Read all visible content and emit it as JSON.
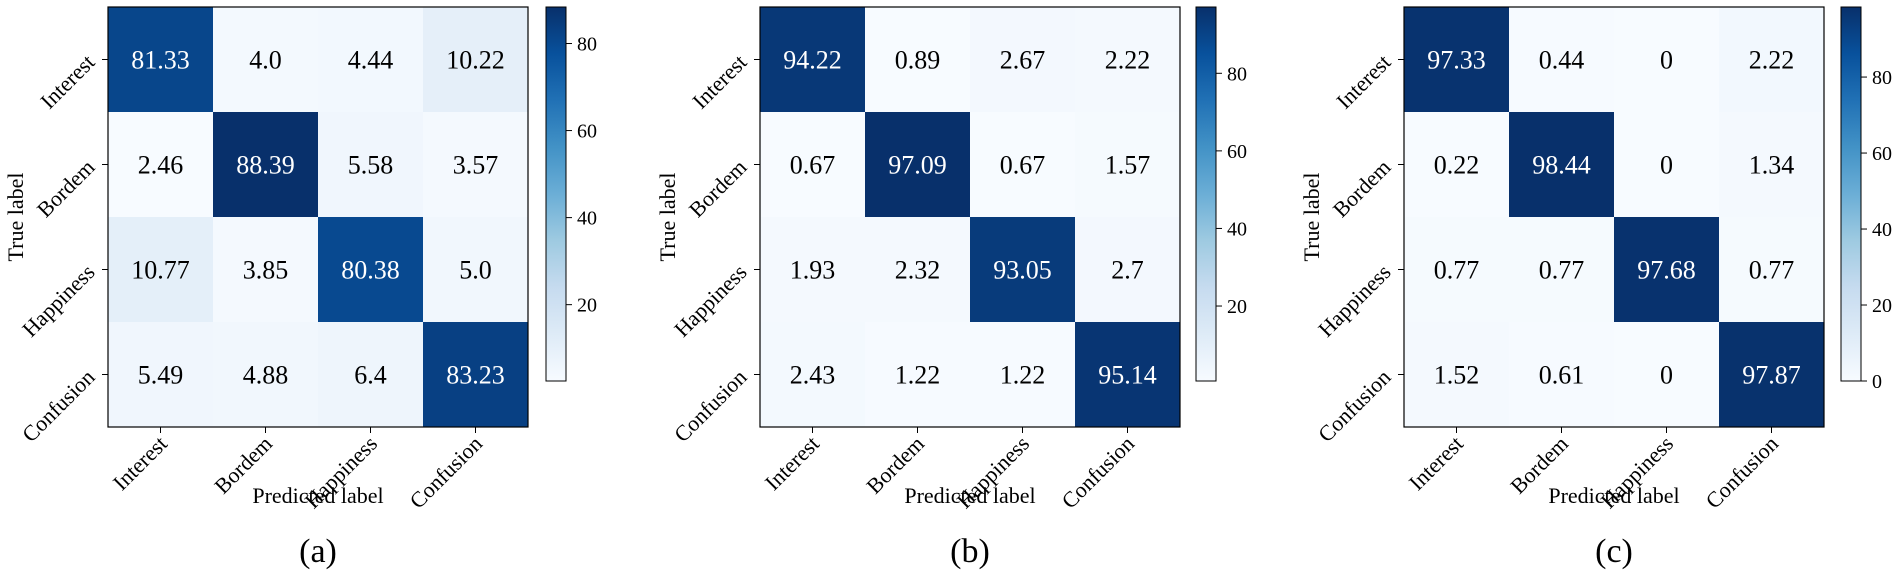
{
  "chart_data": [
    {
      "type": "heatmap",
      "panel_label": "(a)",
      "xlabel": "Predicted label",
      "ylabel": "True label",
      "x_categories": [
        "Interest",
        "Bordem",
        "Happiness",
        "Confusion"
      ],
      "y_categories": [
        "Interest",
        "Bordem",
        "Happiness",
        "Confusion"
      ],
      "values": [
        [
          81.33,
          4.0,
          4.44,
          10.22
        ],
        [
          2.46,
          88.39,
          5.58,
          3.57
        ],
        [
          10.77,
          3.85,
          80.38,
          5.0
        ],
        [
          5.49,
          4.88,
          6.4,
          83.23
        ]
      ],
      "value_labels": [
        [
          "81.33",
          "4.0",
          "4.44",
          "10.22"
        ],
        [
          "2.46",
          "88.39",
          "5.58",
          "3.57"
        ],
        [
          "10.77",
          "3.85",
          "80.38",
          "5.0"
        ],
        [
          "5.49",
          "4.88",
          "6.4",
          "83.23"
        ]
      ],
      "vmin": 2.46,
      "vmax": 88.39,
      "colorbar_ticks": [
        20,
        40,
        60,
        80
      ],
      "colormap": "Blues"
    },
    {
      "type": "heatmap",
      "panel_label": "(b)",
      "xlabel": "Predicted label",
      "ylabel": "True label",
      "x_categories": [
        "Interest",
        "Bordem",
        "Happiness",
        "Confusion"
      ],
      "y_categories": [
        "Interest",
        "Bordem",
        "Happiness",
        "Confusion"
      ],
      "values": [
        [
          94.22,
          0.89,
          2.67,
          2.22
        ],
        [
          0.67,
          97.09,
          0.67,
          1.57
        ],
        [
          1.93,
          2.32,
          93.05,
          2.7
        ],
        [
          2.43,
          1.22,
          1.22,
          95.14
        ]
      ],
      "value_labels": [
        [
          "94.22",
          "0.89",
          "2.67",
          "2.22"
        ],
        [
          "0.67",
          "97.09",
          "0.67",
          "1.57"
        ],
        [
          "1.93",
          "2.32",
          "93.05",
          "2.7"
        ],
        [
          "2.43",
          "1.22",
          "1.22",
          "95.14"
        ]
      ],
      "vmin": 0.67,
      "vmax": 97.09,
      "colorbar_ticks": [
        20,
        40,
        60,
        80
      ],
      "colormap": "Blues"
    },
    {
      "type": "heatmap",
      "panel_label": "(c)",
      "xlabel": "Predicted label",
      "ylabel": "True label",
      "x_categories": [
        "Interest",
        "Bordem",
        "Happiness",
        "Confusion"
      ],
      "y_categories": [
        "Interest",
        "Bordem",
        "Happiness",
        "Confusion"
      ],
      "values": [
        [
          97.33,
          0.44,
          0,
          2.22
        ],
        [
          0.22,
          98.44,
          0,
          1.34
        ],
        [
          0.77,
          0.77,
          97.68,
          0.77
        ],
        [
          1.52,
          0.61,
          0,
          97.87
        ]
      ],
      "value_labels": [
        [
          "97.33",
          "0.44",
          "0",
          "2.22"
        ],
        [
          "0.22",
          "98.44",
          "0",
          "1.34"
        ],
        [
          "0.77",
          "0.77",
          "97.68",
          "0.77"
        ],
        [
          "1.52",
          "0.61",
          "0",
          "97.87"
        ]
      ],
      "vmin": 0,
      "vmax": 98.44,
      "colorbar_ticks": [
        0,
        20,
        40,
        60,
        80
      ],
      "colormap": "Blues"
    }
  ]
}
